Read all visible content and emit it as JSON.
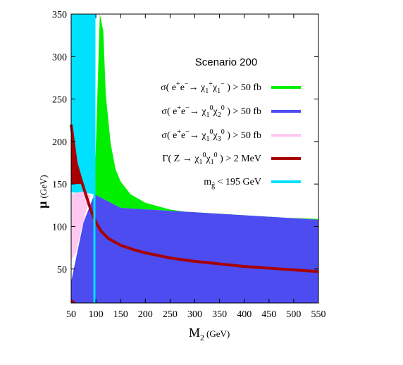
{
  "chart_data": {
    "type": "area",
    "title": "Scenario 200",
    "xlabel_main": "M",
    "xlabel_sub": "2",
    "xlabel_unit": "(GeV)",
    "ylabel_main": "μ",
    "ylabel_unit": "(GeV)",
    "xlim": [
      50,
      550
    ],
    "ylim": [
      10,
      350
    ],
    "xticks": [
      50,
      100,
      150,
      200,
      250,
      300,
      350,
      400,
      450,
      500,
      550
    ],
    "yticks": [
      50,
      100,
      150,
      200,
      250,
      300,
      350
    ],
    "legend_position": "upper-right",
    "colors": {
      "chargino": "#00ee00",
      "neutralino12": "#4c4cf0",
      "neutralino13": "#ffc8f0",
      "zwidth": "#a80000",
      "gluino": "#00e0ff"
    },
    "series": [
      {
        "name": "σ( e+e− → χ1+χ1− ) > 50 fb",
        "legend_text": {
          "pre": "σ( e",
          "sup1": "+",
          "mid1": "e",
          "sup2": "−",
          "mid2": "→ χ",
          "sub1": "1",
          "sup3": "+",
          "mid3": "χ",
          "sub2": "1",
          "sup4": "−",
          "post": ") > 50 fb"
        },
        "kind": "region",
        "upper_boundary": {
          "x": [
            108,
            115,
            120,
            130,
            140,
            150,
            170,
            200,
            250,
            300,
            400,
            550
          ],
          "y": [
            350,
            330,
            255,
            197,
            167,
            153,
            138,
            128,
            120,
            116,
            112,
            109
          ]
        },
        "lower_boundary": {
          "x": [
            97,
            150,
            550
          ],
          "y": [
            138,
            122,
            108
          ]
        }
      },
      {
        "name": "σ( e+e− → χ1⁰χ2⁰ ) > 50 fb",
        "legend_text": {
          "pre": "σ( e",
          "sup1": "+",
          "mid1": "e",
          "sup2": "−",
          "mid2": "→ χ",
          "sub1": "1",
          "sup3": "0",
          "mid3": "χ",
          "sub2": "2",
          "sup4": "0",
          "post": ") > 50 fb"
        },
        "kind": "region",
        "upper_boundary": {
          "x": [
            50,
            75,
            97,
            150,
            550
          ],
          "y": [
            35,
            105,
            138,
            122,
            108
          ]
        }
      },
      {
        "name": "σ( e+e− → χ1⁰χ3⁰ ) > 50 fb",
        "legend_text": {
          "pre": "σ( e",
          "sup1": "+",
          "mid1": "e",
          "sup2": "−",
          "mid2": "→ χ",
          "sub1": "1",
          "sup3": "0",
          "mid3": "χ",
          "sub2": "3",
          "sup4": "0",
          "post": ") > 50 fb"
        },
        "kind": "region",
        "boundary": {
          "x": [
            50,
            62,
            72,
            82,
            90,
            80,
            70,
            60,
            50
          ],
          "y": [
            138,
            140,
            141,
            140,
            136,
            118,
            95,
            70,
            60
          ]
        }
      },
      {
        "name": "Γ( Z → χ1⁰χ1⁰ ) > 2 MeV",
        "legend_text": {
          "pre": "Γ( Z → χ",
          "sub1": "1",
          "sup1": "0",
          "mid1": "χ",
          "sub2": "1",
          "sup2": "0",
          "post": ") > 2 MeV"
        },
        "kind": "band",
        "x": [
          50,
          60,
          70,
          80,
          90,
          100,
          110,
          125,
          150,
          175,
          200,
          250,
          300,
          350,
          400,
          450,
          500,
          550
        ],
        "y": [
          220,
          175,
          155,
          137,
          119,
          105,
          95,
          86,
          78,
          73,
          69,
          63,
          59,
          56,
          53,
          51,
          49,
          47
        ],
        "extra_region": {
          "x": [
            50,
            56,
            60
          ],
          "y": [
            15,
            12,
            10
          ]
        }
      },
      {
        "name": "m~g < 195 GeV",
        "legend_text": {
          "pre": "m",
          "sub1": "g̃",
          "post": "< 195 GeV"
        },
        "kind": "region",
        "x_range": [
          50,
          97
        ],
        "line_x": 97
      }
    ]
  }
}
